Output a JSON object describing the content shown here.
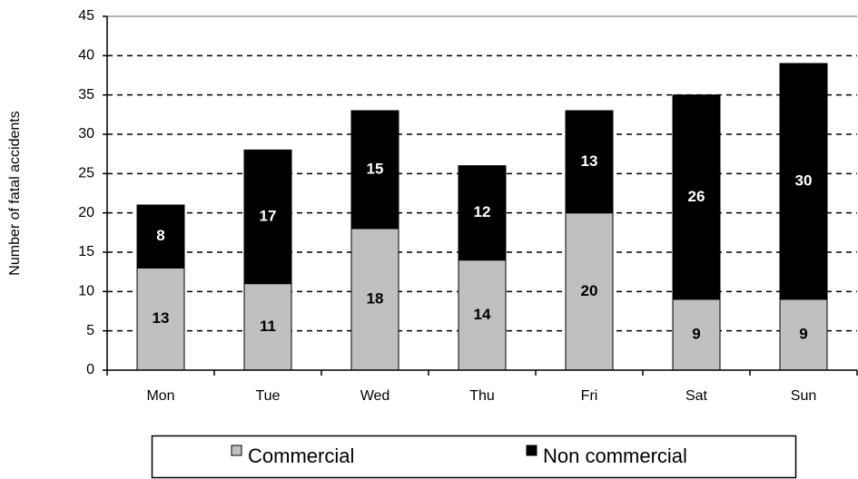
{
  "chart_data": {
    "type": "stacked_bar",
    "y_label": "Number of fatal accidents",
    "categories": [
      "Mon",
      "Tue",
      "Wed",
      "Thu",
      "Fri",
      "Sat",
      "Sun"
    ],
    "series": [
      {
        "name": "Commercial",
        "color": "#c0c0c0",
        "label_color": "#000000",
        "values": [
          13,
          11,
          18,
          14,
          20,
          9,
          9
        ]
      },
      {
        "name": "Non commercial",
        "color": "#000000",
        "label_color": "#ffffff",
        "values": [
          8,
          17,
          15,
          12,
          13,
          26,
          30
        ]
      }
    ],
    "ylim": [
      0,
      45
    ],
    "yticks": [
      0,
      5,
      10,
      15,
      20,
      25,
      30,
      35,
      40,
      45
    ],
    "grid": true,
    "legend": "bottom"
  }
}
